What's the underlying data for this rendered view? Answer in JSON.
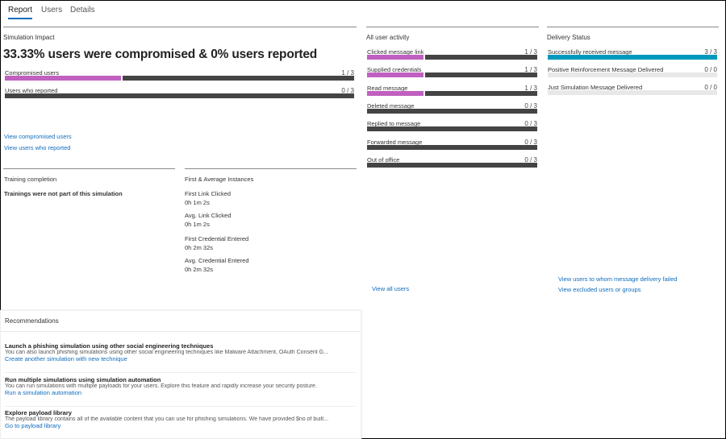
{
  "tabs": [
    {
      "label": "Report",
      "active": true
    },
    {
      "label": "Users"
    },
    {
      "label": "Details"
    }
  ],
  "impact": {
    "title": "Simulation Impact",
    "headline": "33.33% users were compromised & 0% users reported",
    "bars": [
      {
        "label": "Compromised users",
        "count": "1 / 3",
        "fraction": 0.3333
      },
      {
        "label": "Users who reported",
        "count": "0 / 3",
        "fraction": 0
      }
    ],
    "links": [
      "View compromised users",
      "View users who reported"
    ]
  },
  "training": {
    "title": "Training completion",
    "text": "Trainings were not part of this simulation"
  },
  "instances": {
    "title": "First & Average Instances",
    "items": [
      {
        "label": "First Link Clicked",
        "value": "0h 1m 2s"
      },
      {
        "label": "Avg. Link Clicked",
        "value": "0h 1m 2s"
      },
      {
        "label": "First Credential Entered",
        "value": "0h 2m 32s"
      },
      {
        "label": "Avg. Credential Entered",
        "value": "0h 2m 32s"
      }
    ]
  },
  "activity": {
    "title": "All user activity",
    "items": [
      {
        "label": "Clicked message link",
        "count": "1 / 3",
        "fraction": 0.3333
      },
      {
        "label": "Supplied credentials",
        "count": "1 / 3",
        "fraction": 0.3333
      },
      {
        "label": "Read message",
        "count": "1 / 3",
        "fraction": 0.3333
      },
      {
        "label": "Deleted message",
        "count": "0 / 3",
        "fraction": 0
      },
      {
        "label": "Replied to message",
        "count": "0 / 3",
        "fraction": 0
      },
      {
        "label": "Forwarded message",
        "count": "0 / 3",
        "fraction": 0
      },
      {
        "label": "Out of office",
        "count": "0 / 3",
        "fraction": 0
      }
    ],
    "link": "View all users"
  },
  "delivery": {
    "title": "Delivery Status",
    "items": [
      {
        "label": "Successfully received message",
        "count": "3 / 3",
        "fraction": 1
      },
      {
        "label": "Positive Reinforcement Message Delivered",
        "count": "0 / 0",
        "fraction": null
      },
      {
        "label": "Just Simulation Message Delivered",
        "count": "0 / 0",
        "fraction": null
      }
    ],
    "links": [
      "View users to whom message delivery failed",
      "View excluded users or groups"
    ]
  },
  "recommendations": {
    "title": "Recommendations",
    "items": [
      {
        "title": "Launch a phishing simulation using other social engineering techniques",
        "desc": "You can also launch phishing simulations using other social engineering techniques like Malware Attachment, OAuth Consent G...",
        "link": "Create another simulation with new technique"
      },
      {
        "title": "Run multiple simulations using simulation automation",
        "desc": "You can run simulations with multiple payloads for your users. Explore this feature and rapidly increase your security posture.",
        "link": "Run a simulation automation"
      },
      {
        "title": "Explore payload library",
        "desc": "The payload library contains all of the available content that you can use for phishing simulations. We have provided $no of built...",
        "link": "Go to payload library"
      }
    ]
  },
  "colors": {
    "compromised": "#c060c0",
    "remaining": "#444444",
    "delivered": "#0099bc",
    "empty": "#e8e8e8",
    "link": "#0f6cbd"
  }
}
